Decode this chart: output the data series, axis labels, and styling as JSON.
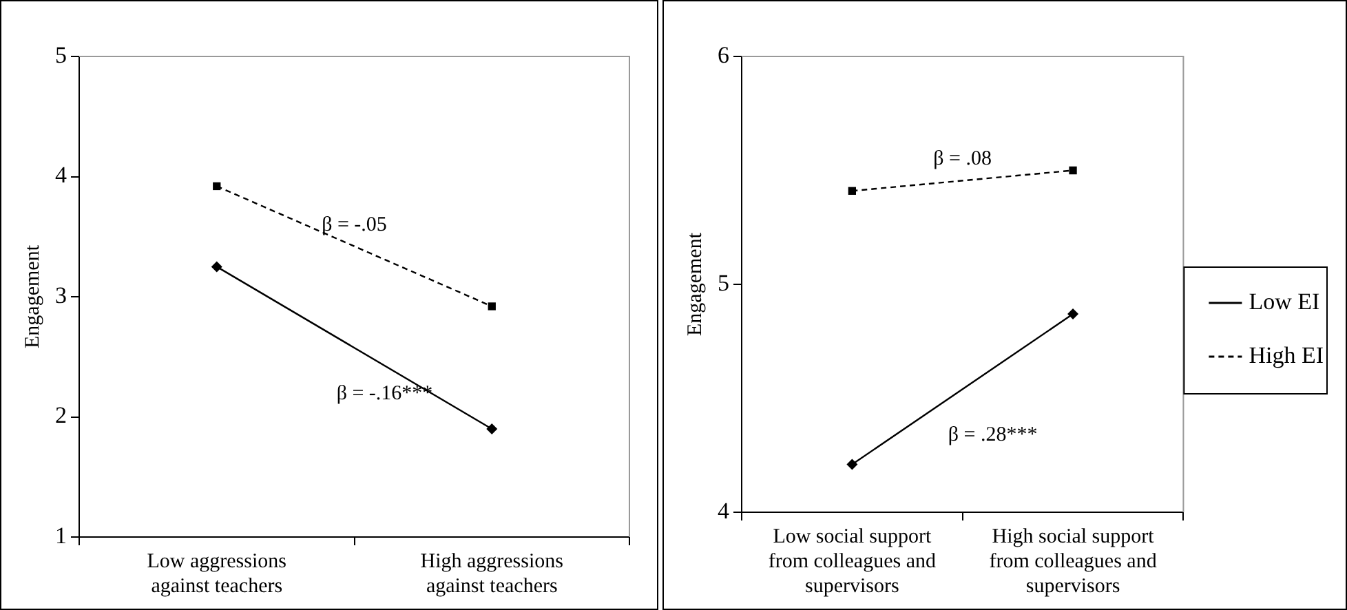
{
  "chart_data": [
    {
      "type": "line",
      "ylabel": "Engagement",
      "categories": [
        "Low aggressions against teachers",
        "High aggressions against teachers"
      ],
      "ylim": [
        1,
        5
      ],
      "yticks": [
        1,
        2,
        3,
        4,
        5
      ],
      "grid": false,
      "legend": false,
      "series": [
        {
          "color": "#000000",
          "values": [
            3.25,
            1.9
          ],
          "marker": "diamond",
          "line_style": "solid"
        },
        {
          "color": "#000000",
          "values": [
            3.92,
            2.92
          ],
          "marker": "square",
          "line_style": "dashed"
        }
      ],
      "annotations": [
        "β = -.16***",
        "β = -.05"
      ]
    },
    {
      "type": "line",
      "ylabel": "Engagement",
      "categories": [
        "Low social support from colleagues and supervisors",
        "High social support from colleagues and supervisors"
      ],
      "ylim": [
        4,
        6
      ],
      "yticks": [
        4,
        5,
        6
      ],
      "grid": false,
      "legend": "right",
      "series": [
        {
          "name": "Low EI",
          "color": "#000000",
          "values": [
            4.21,
            4.87
          ],
          "marker": "diamond",
          "line_style": "solid"
        },
        {
          "name": "High EI",
          "color": "#000000",
          "values": [
            5.41,
            5.5
          ],
          "marker": "square",
          "line_style": "dashed"
        }
      ],
      "annotations": [
        "β = .28***",
        "β = .08"
      ]
    }
  ]
}
